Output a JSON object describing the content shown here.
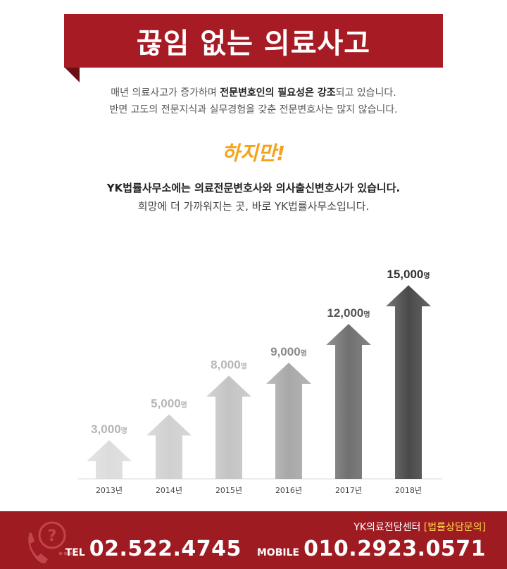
{
  "header": {
    "title": "끊임 없는 의료사고"
  },
  "intro": {
    "line1_pre": "매년 의료사고가 증가하며 ",
    "line1_bold1": "전문변호인의 필요성은 강조",
    "line1_post": "되고 있습니다.",
    "line2": "반면 고도의 전문지식과 실무경험을 갖춘 전문변호사는 많지 않습니다."
  },
  "however": "하지만!",
  "claim": {
    "line1": "YK법률사무소에는 의료전문변호사와 의사출신변호사가 있습니다.",
    "line2": "희망에 더 가까워지는 곳, 바로 YK법률사무소입니다."
  },
  "chart_data": {
    "type": "bar",
    "categories": [
      "2013년",
      "2014년",
      "2015년",
      "2016년",
      "2017년",
      "2018년"
    ],
    "values": [
      3000,
      5000,
      8000,
      9000,
      12000,
      15000
    ],
    "value_labels": [
      "3,000",
      "5,000",
      "8,000",
      "9,000",
      "12,000",
      "15,000"
    ],
    "unit": "명",
    "ylim": [
      0,
      15000
    ],
    "colors": [
      "#dcdcdc",
      "#d0d0d0",
      "#c4c4c4",
      "#a8a8a8",
      "#707070",
      "#4a4a4a"
    ],
    "label_colors": [
      "#b5b5b5",
      "#b5b5b5",
      "#b5b5b5",
      "#8a8a8a",
      "#555555",
      "#333333"
    ]
  },
  "footer": {
    "center_name": "YK의료전담센터",
    "consult": "[법률상담문의]",
    "tel_label": "TEL",
    "tel": "02.522.4745",
    "mobile_label": "MOBILE",
    "mobile": "010.2923.0571",
    "icon": "phone-question-icon"
  }
}
